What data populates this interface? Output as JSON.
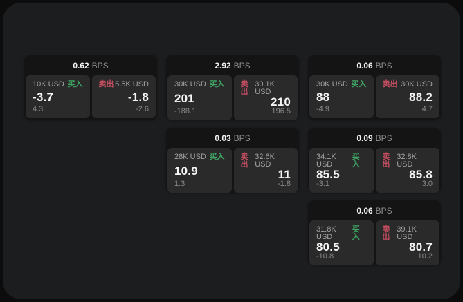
{
  "labels": {
    "buy": "买入",
    "sell": "卖出",
    "bps": "BPS"
  },
  "colors": {
    "buy": "#3fa463",
    "sell": "#c24d5f"
  },
  "cards": [
    {
      "bps": "0.62",
      "row": 1,
      "col": 1,
      "buy": {
        "size": "10K USD",
        "price": "-3.7",
        "delta": "4.3"
      },
      "sell": {
        "size": "5.5K USD",
        "price": "-1.8",
        "delta": "-2.6"
      }
    },
    {
      "bps": "2.92",
      "row": 1,
      "col": 2,
      "buy": {
        "size": "30K USD",
        "price": "201",
        "delta": "-188.1"
      },
      "sell": {
        "size": "30.1K USD",
        "price": "210",
        "delta": "196.5"
      }
    },
    {
      "bps": "0.06",
      "row": 1,
      "col": 3,
      "buy": {
        "size": "30K USD",
        "price": "88",
        "delta": "-4.9"
      },
      "sell": {
        "size": "30K USD",
        "price": "88.2",
        "delta": "4.7"
      }
    },
    {
      "bps": "0.03",
      "row": 2,
      "col": 2,
      "buy": {
        "size": "28K USD",
        "price": "10.9",
        "delta": "1.3"
      },
      "sell": {
        "size": "32.6K USD",
        "price": "11",
        "delta": "-1.8"
      }
    },
    {
      "bps": "0.09",
      "row": 2,
      "col": 3,
      "buy": {
        "size": "34.1K USD",
        "price": "85.5",
        "delta": "-3.1"
      },
      "sell": {
        "size": "32.8K USD",
        "price": "85.8",
        "delta": "3.0"
      }
    },
    {
      "bps": "0.06",
      "row": 3,
      "col": 3,
      "buy": {
        "size": "31.8K USD",
        "price": "80.5",
        "delta": "-10.8"
      },
      "sell": {
        "size": "39.1K USD",
        "price": "80.7",
        "delta": "10.2"
      }
    }
  ]
}
